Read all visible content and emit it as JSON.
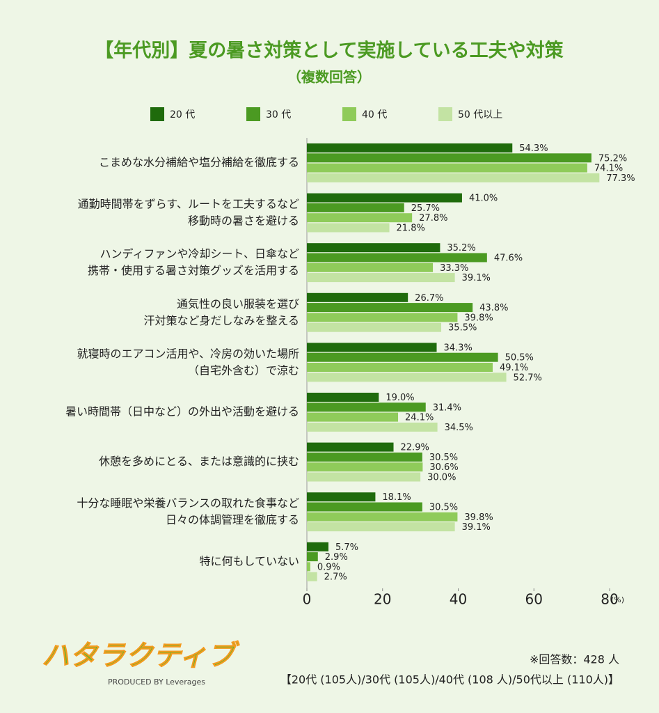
{
  "chart_data": {
    "type": "hbar",
    "title": "【年代別】夏の暑さ対策として実施している工夫や対策",
    "subtitle": "（複数回答）",
    "categories": [
      "こまめな水分補給や塩分補給を徹底する",
      "通勤時間帯をずらす、ルートを工夫するなど\n移動時の暑さを避ける",
      "ハンディファンや冷却シート、日傘など\n携帯・使用する暑さ対策グッズを活用する",
      "通気性の良い服装を選び\n汗対策など身だしなみを整える",
      "就寝時のエアコン活用や、冷房の効いた場所\n（自宅外含む）で涼む",
      "暑い時間帯（日中など）の外出や活動を避ける",
      "休憩を多めにとる、または意識的に挟む",
      "十分な睡眠や栄養バランスの取れた食事など\n日々の体調管理を徹底する",
      "特に何もしていない"
    ],
    "series": [
      {
        "name": "20 代",
        "color": "#1f6b0c",
        "values": [
          54.3,
          41.0,
          35.2,
          26.7,
          34.3,
          19.0,
          22.9,
          18.1,
          5.7
        ],
        "value_labels": [
          "54.3%",
          "41.0%",
          "35.2%",
          "26.7%",
          "34.3%",
          "19.0%",
          "22.9%",
          "18.1%",
          "5.7%"
        ]
      },
      {
        "name": "30 代",
        "color": "#4b9a22",
        "values": [
          75.2,
          25.7,
          47.6,
          43.8,
          50.5,
          31.4,
          30.5,
          30.5,
          2.9
        ],
        "value_labels": [
          "75.2%",
          "25.7%",
          "47.6%",
          "43.8%",
          "50.5%",
          "31.4%",
          "30.5%",
          "30.5%",
          "2.9%"
        ]
      },
      {
        "name": "40 代",
        "color": "#8fcb5a",
        "values": [
          74.1,
          27.8,
          33.3,
          39.8,
          49.1,
          24.1,
          30.6,
          39.8,
          0.9
        ],
        "value_labels": [
          "74.1%",
          "27.8%",
          "33.3%",
          "39.8%",
          "49.1%",
          "24.1%",
          "30.6%",
          "39.8%",
          "0.9%"
        ]
      },
      {
        "name": "50 代以上",
        "color": "#c3e3a3",
        "values": [
          77.3,
          21.8,
          39.1,
          35.5,
          52.7,
          34.5,
          30.0,
          39.1,
          2.7
        ],
        "value_labels": [
          "77.3%",
          "21.8%",
          "39.1%",
          "35.5%",
          "52.7%",
          "34.5%",
          "30.0%",
          "39.1%",
          "2.7%"
        ]
      }
    ],
    "xlim": [
      0,
      80
    ],
    "xticks": [
      0,
      20,
      40,
      60,
      80
    ],
    "x_label": "(%)"
  },
  "footer": {
    "note": "※回答数：428 人",
    "breakdown": "【20代 (105人)/30代 (105人)/40代 (108 人)/50代以上 (110人)】"
  },
  "logo": {
    "name": "ハタラクティブ",
    "byline": "PRODUCED BY Leverages"
  }
}
